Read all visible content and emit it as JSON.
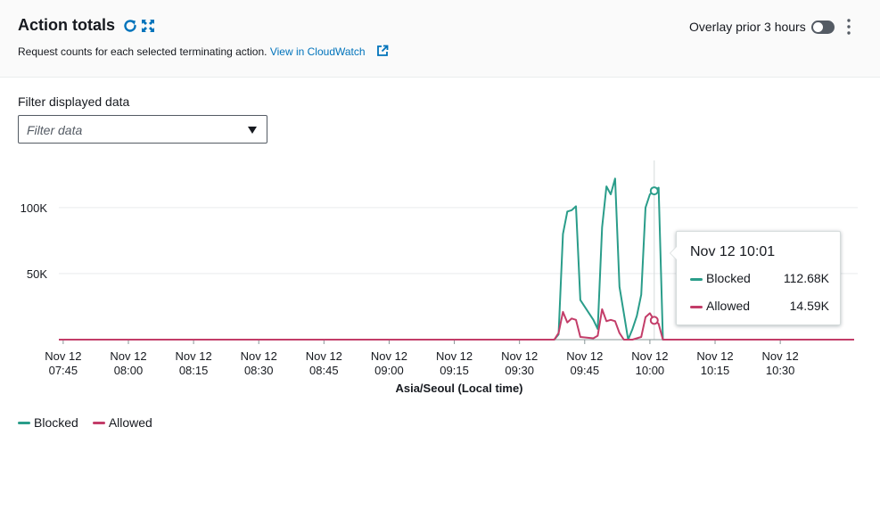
{
  "header": {
    "title": "Action totals",
    "subtitle": "Request counts for each selected terminating action.",
    "link_label": "View in CloudWatch",
    "overlay_label": "Overlay prior 3 hours",
    "overlay_enabled": false
  },
  "filter": {
    "label": "Filter displayed data",
    "placeholder": "Filter data"
  },
  "icons": {
    "refresh": "refresh-icon",
    "expand": "expand-icon",
    "external": "external-link-icon",
    "more": "more-vertical-icon",
    "caret": "caret-down-icon"
  },
  "colors": {
    "blocked": "#2a9d8a",
    "allowed": "#c33d69",
    "link": "#0073bb"
  },
  "tooltip": {
    "title": "Nov 12 10:01",
    "rows": [
      {
        "name": "Blocked",
        "value": "112.68K"
      },
      {
        "name": "Allowed",
        "value": "14.59K"
      }
    ]
  },
  "chart_data": {
    "type": "line",
    "xlabel": "Asia/Seoul (Local time)",
    "ylabel": "",
    "ylim": [
      0,
      135000
    ],
    "grid": true,
    "legend_position": "bottom-left",
    "yticks": [
      {
        "value": 50000,
        "label": "50K"
      },
      {
        "value": 100000,
        "label": "100K"
      }
    ],
    "xticks": [
      {
        "time": "07:45",
        "line1": "Nov 12",
        "line2": "07:45"
      },
      {
        "time": "08:00",
        "line1": "Nov 12",
        "line2": "08:00"
      },
      {
        "time": "08:15",
        "line1": "Nov 12",
        "line2": "08:15"
      },
      {
        "time": "08:30",
        "line1": "Nov 12",
        "line2": "08:30"
      },
      {
        "time": "08:45",
        "line1": "Nov 12",
        "line2": "08:45"
      },
      {
        "time": "09:00",
        "line1": "Nov 12",
        "line2": "09:00"
      },
      {
        "time": "09:15",
        "line1": "Nov 12",
        "line2": "09:15"
      },
      {
        "time": "09:30",
        "line1": "Nov 12",
        "line2": "09:30"
      },
      {
        "time": "09:45",
        "line1": "Nov 12",
        "line2": "09:45"
      },
      {
        "time": "10:00",
        "line1": "Nov 12",
        "line2": "10:00"
      },
      {
        "time": "10:15",
        "line1": "Nov 12",
        "line2": "10:15"
      },
      {
        "time": "10:30",
        "line1": "Nov 12",
        "line2": "10:30"
      }
    ],
    "x_range": [
      "07:44",
      "10:47"
    ],
    "highlight_time": "10:01",
    "series": [
      {
        "name": "Blocked",
        "points": [
          [
            "07:44",
            0
          ],
          [
            "09:38",
            0
          ],
          [
            "09:39",
            4000
          ],
          [
            "09:40",
            80000
          ],
          [
            "09:41",
            97000
          ],
          [
            "09:42",
            98000
          ],
          [
            "09:43",
            101000
          ],
          [
            "09:44",
            30000
          ],
          [
            "09:47",
            15000
          ],
          [
            "09:48",
            8000
          ],
          [
            "09:49",
            85000
          ],
          [
            "09:50",
            116000
          ],
          [
            "09:51",
            110000
          ],
          [
            "09:52",
            122000
          ],
          [
            "09:53",
            40000
          ],
          [
            "09:54",
            20000
          ],
          [
            "09:55",
            0
          ],
          [
            "09:56",
            8000
          ],
          [
            "09:57",
            18000
          ],
          [
            "09:58",
            34000
          ],
          [
            "09:59",
            100000
          ],
          [
            "10:00",
            110000
          ],
          [
            "10:01",
            112680
          ],
          [
            "10:02",
            115000
          ],
          [
            "10:03",
            0
          ],
          [
            "10:47",
            0
          ]
        ]
      },
      {
        "name": "Allowed",
        "points": [
          [
            "07:44",
            0
          ],
          [
            "09:38",
            0
          ],
          [
            "09:39",
            5000
          ],
          [
            "09:40",
            21000
          ],
          [
            "09:41",
            13000
          ],
          [
            "09:42",
            16000
          ],
          [
            "09:43",
            15000
          ],
          [
            "09:44",
            2000
          ],
          [
            "09:47",
            1000
          ],
          [
            "09:48",
            3000
          ],
          [
            "09:49",
            23000
          ],
          [
            "09:50",
            14000
          ],
          [
            "09:51",
            15000
          ],
          [
            "09:52",
            14000
          ],
          [
            "09:53",
            5000
          ],
          [
            "09:54",
            0
          ],
          [
            "09:56",
            0
          ],
          [
            "09:57",
            1000
          ],
          [
            "09:58",
            2000
          ],
          [
            "09:59",
            17000
          ],
          [
            "10:00",
            20000
          ],
          [
            "10:01",
            14590
          ],
          [
            "10:02",
            12000
          ],
          [
            "10:03",
            0
          ],
          [
            "10:47",
            0
          ]
        ]
      }
    ]
  }
}
